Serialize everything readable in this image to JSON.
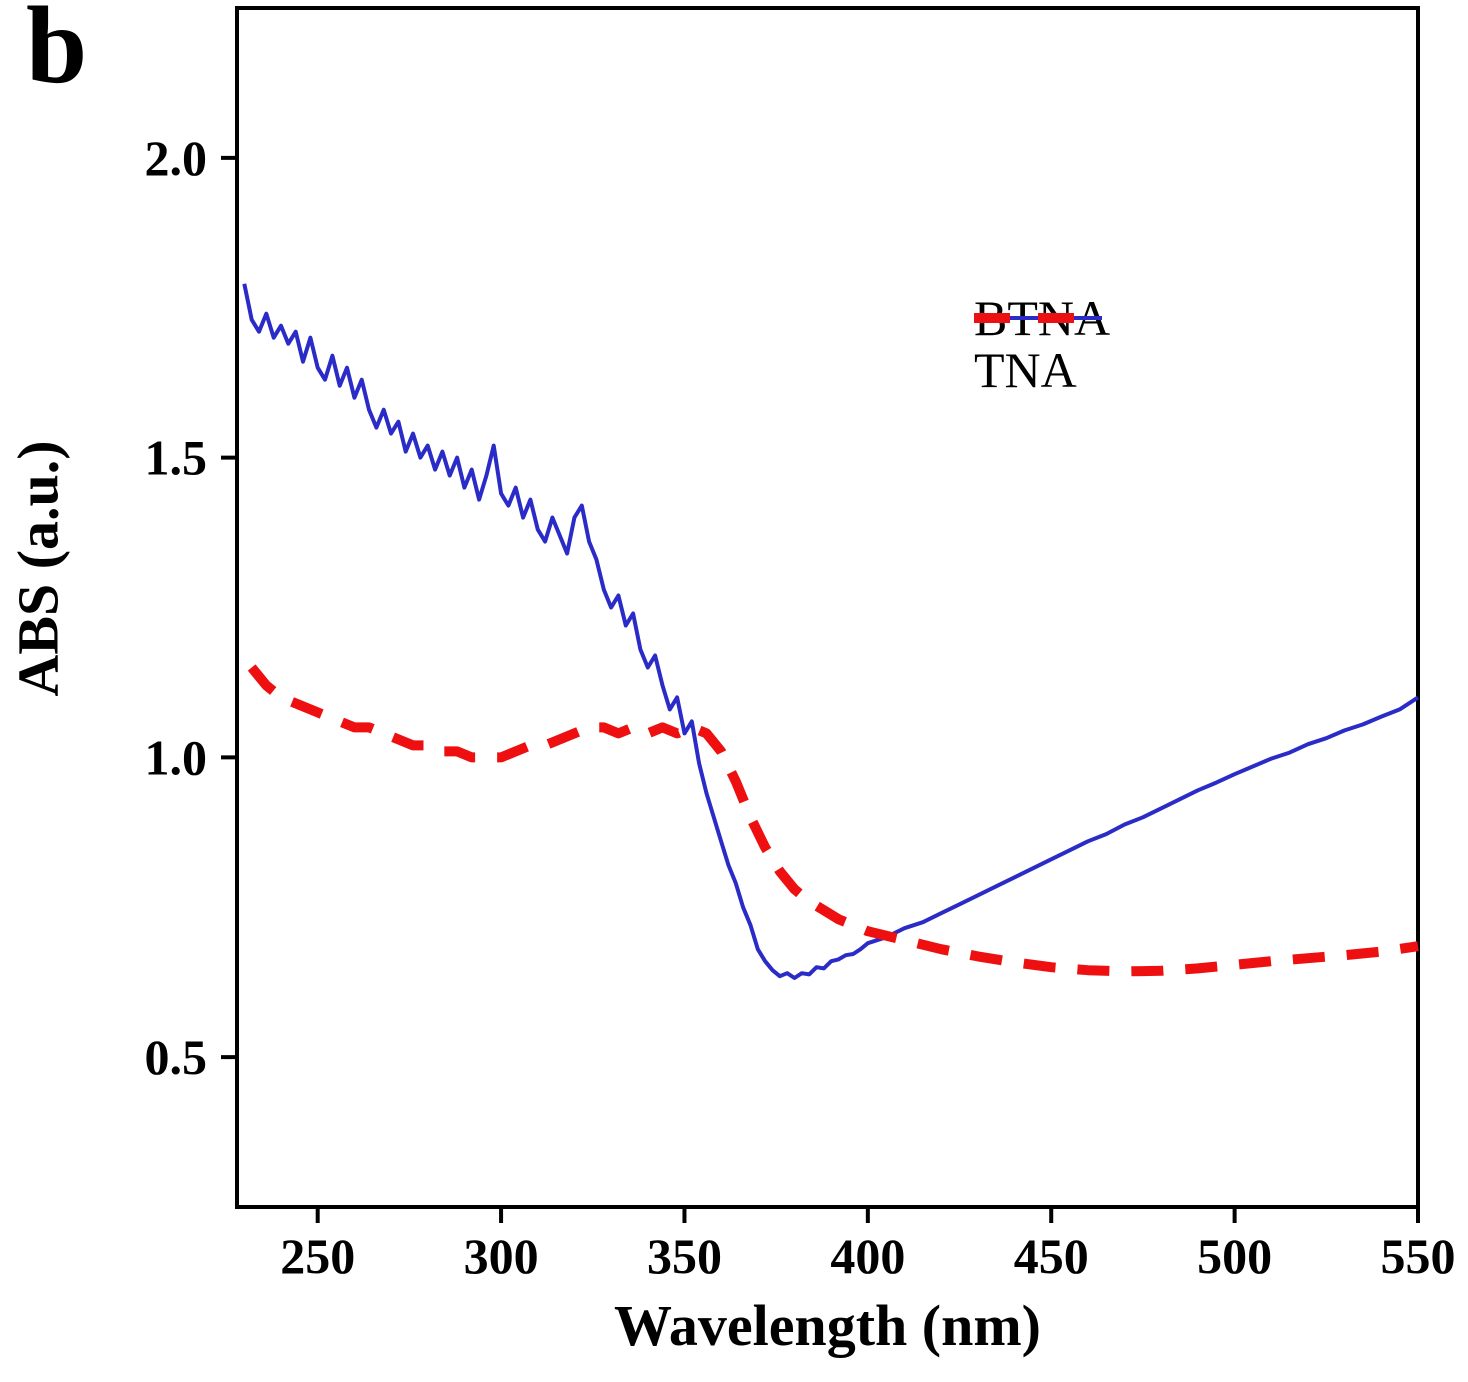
{
  "panel_label": "b",
  "axes": {
    "xlabel": "Wavelength (nm)",
    "ylabel": "ABS (a.u.)",
    "x_ticks": [
      250,
      300,
      350,
      400,
      450,
      500,
      550
    ],
    "y_ticks": [
      0.5,
      1.0,
      1.5,
      2.0
    ],
    "xlim": [
      228,
      550
    ],
    "ylim": [
      0.25,
      2.25
    ]
  },
  "legend": [
    {
      "label": "BTNA",
      "color": "#2b2bc8",
      "style": "solid"
    },
    {
      "label": "TNA",
      "color": "#ee1010",
      "style": "dashed"
    }
  ],
  "chart_data": {
    "type": "line",
    "title": "",
    "xlabel": "Wavelength (nm)",
    "ylabel": "ABS (a.u.)",
    "xlim": [
      228,
      550
    ],
    "ylim": [
      0.25,
      2.25
    ],
    "grid": false,
    "legend_position": "upper right",
    "series": [
      {
        "name": "BTNA",
        "color": "#2b2bc8",
        "line_style": "solid",
        "x": [
          230,
          232,
          234,
          236,
          238,
          240,
          242,
          244,
          246,
          248,
          250,
          252,
          254,
          256,
          258,
          260,
          262,
          264,
          266,
          268,
          270,
          272,
          274,
          276,
          278,
          280,
          282,
          284,
          286,
          288,
          290,
          292,
          294,
          296,
          298,
          300,
          302,
          304,
          306,
          308,
          310,
          312,
          314,
          316,
          318,
          320,
          322,
          324,
          326,
          328,
          330,
          332,
          334,
          336,
          338,
          340,
          342,
          344,
          346,
          348,
          350,
          352,
          354,
          356,
          358,
          360,
          362,
          364,
          366,
          368,
          370,
          372,
          374,
          376,
          378,
          380,
          382,
          384,
          386,
          388,
          390,
          392,
          394,
          396,
          398,
          400,
          405,
          410,
          415,
          420,
          425,
          430,
          435,
          440,
          445,
          450,
          455,
          460,
          465,
          470,
          475,
          480,
          485,
          490,
          495,
          500,
          505,
          510,
          515,
          520,
          525,
          530,
          535,
          540,
          545,
          550
        ],
        "y": [
          1.79,
          1.73,
          1.71,
          1.74,
          1.7,
          1.72,
          1.69,
          1.71,
          1.66,
          1.7,
          1.65,
          1.63,
          1.67,
          1.62,
          1.65,
          1.6,
          1.63,
          1.58,
          1.55,
          1.58,
          1.54,
          1.56,
          1.51,
          1.54,
          1.5,
          1.52,
          1.48,
          1.51,
          1.47,
          1.5,
          1.45,
          1.48,
          1.43,
          1.47,
          1.52,
          1.44,
          1.42,
          1.45,
          1.4,
          1.43,
          1.38,
          1.36,
          1.4,
          1.37,
          1.34,
          1.4,
          1.42,
          1.36,
          1.33,
          1.28,
          1.25,
          1.27,
          1.22,
          1.24,
          1.18,
          1.15,
          1.17,
          1.12,
          1.08,
          1.1,
          1.04,
          1.06,
          0.99,
          0.94,
          0.9,
          0.86,
          0.82,
          0.79,
          0.75,
          0.72,
          0.68,
          0.66,
          0.645,
          0.635,
          0.64,
          0.632,
          0.64,
          0.638,
          0.65,
          0.648,
          0.66,
          0.663,
          0.67,
          0.672,
          0.68,
          0.69,
          0.7,
          0.715,
          0.725,
          0.74,
          0.755,
          0.77,
          0.785,
          0.8,
          0.815,
          0.83,
          0.845,
          0.86,
          0.872,
          0.888,
          0.9,
          0.915,
          0.93,
          0.945,
          0.958,
          0.972,
          0.985,
          0.998,
          1.008,
          1.022,
          1.032,
          1.045,
          1.055,
          1.068,
          1.08,
          1.1
        ]
      },
      {
        "name": "TNA",
        "color": "#ee1010",
        "line_style": "dashed",
        "x": [
          232,
          236,
          240,
          244,
          248,
          252,
          256,
          260,
          264,
          268,
          272,
          276,
          280,
          284,
          288,
          292,
          296,
          300,
          304,
          308,
          312,
          316,
          320,
          324,
          328,
          332,
          336,
          340,
          344,
          348,
          352,
          356,
          360,
          364,
          368,
          372,
          376,
          380,
          384,
          388,
          392,
          396,
          400,
          410,
          420,
          430,
          440,
          450,
          460,
          470,
          480,
          490,
          500,
          510,
          520,
          530,
          540,
          550
        ],
        "y": [
          1.15,
          1.12,
          1.1,
          1.09,
          1.08,
          1.07,
          1.06,
          1.05,
          1.05,
          1.04,
          1.03,
          1.02,
          1.02,
          1.01,
          1.01,
          1.0,
          1.0,
          1.0,
          1.01,
          1.02,
          1.02,
          1.03,
          1.04,
          1.05,
          1.05,
          1.04,
          1.05,
          1.04,
          1.05,
          1.04,
          1.05,
          1.04,
          1.01,
          0.96,
          0.9,
          0.85,
          0.81,
          0.78,
          0.76,
          0.745,
          0.73,
          0.72,
          0.71,
          0.695,
          0.68,
          0.668,
          0.658,
          0.65,
          0.645,
          0.643,
          0.644,
          0.648,
          0.654,
          0.66,
          0.665,
          0.67,
          0.676,
          0.685
        ]
      }
    ]
  }
}
